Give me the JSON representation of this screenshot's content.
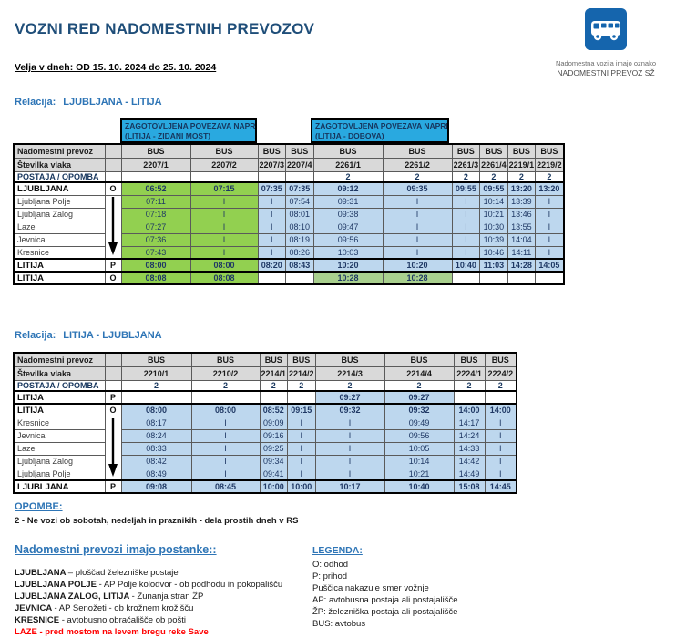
{
  "page": {
    "title": "VOZNI RED NADOMESTNIH PREVOZOV",
    "validity": "Velja v dneh: OD 15. 10. 2024 do 25. 10. 2024",
    "logo": {
      "caption_line1": "Nadomestna vozila imajo oznako",
      "caption_line2": "NADOMESTNI PREVOZ SŽ"
    }
  },
  "colors": {
    "accent_blue": "#1F4E79",
    "relation_blue": "#2E75B6",
    "banner_blue": "#29A9E0",
    "green": "#92D050",
    "light_green": "#A9D08E",
    "light_blue": "#BDD7EE",
    "header_gray": "#D9D9D9",
    "alert_red": "#FF0000"
  },
  "tables": [
    {
      "name": "timetable-ljubljana-litija",
      "relation_label": "Relacija:",
      "relation_value": "LJUBLJANA - LITIJA",
      "banners": [
        {
          "lines": [
            "ZAGOTOVLJENA POVEZAVA NAPREJ:",
            "(LITIJA - ZIDANI MOST)"
          ],
          "span": [
            0,
            1
          ]
        },
        {
          "lines": [
            "ZAGOTOVLJENA POVEZAVA NAPREJ:",
            "(LITIJA - DOBOVA)"
          ],
          "span": [
            4,
            5
          ]
        }
      ],
      "header_row_label": "Nadomestni prevoz",
      "bus_label": "BUS",
      "train_row_label": "Številka vlaka",
      "train_numbers": [
        "2207/1",
        "2207/2",
        "2207/3",
        "2207/4",
        "2261/1",
        "2261/2",
        "2261/3",
        "2261/4",
        "2219/1",
        "2219/2"
      ],
      "note_row_label": "POSTAJA / OPOMBA",
      "notes": [
        "",
        "",
        "",
        "",
        "2",
        "2",
        "2",
        "2",
        "2",
        "2"
      ],
      "arrow_rowspan": 5,
      "rows": [
        {
          "station": "LJUBLJANA",
          "mark": "O",
          "major": true,
          "thick": true,
          "cells": [
            {
              "t": "06:52",
              "bg": "green"
            },
            {
              "t": "07:15",
              "bg": "green"
            },
            {
              "t": "07:35",
              "bg": "blue"
            },
            {
              "t": "07:35",
              "bg": "blue"
            },
            {
              "t": "09:12",
              "bg": "blue"
            },
            {
              "t": "09:35",
              "bg": "blue"
            },
            {
              "t": "09:55",
              "bg": "blue"
            },
            {
              "t": "09:55",
              "bg": "blue"
            },
            {
              "t": "13:20",
              "bg": "blue"
            },
            {
              "t": "13:20",
              "bg": "blue"
            }
          ]
        },
        {
          "station": "Ljubljana Polje",
          "mark": "arrow",
          "major": false,
          "thick": false,
          "cells": [
            {
              "t": "07:11",
              "bg": "green"
            },
            {
              "t": "I",
              "bg": "green"
            },
            {
              "t": "I",
              "bg": "blue"
            },
            {
              "t": "07:54",
              "bg": "blue"
            },
            {
              "t": "09:31",
              "bg": "blue"
            },
            {
              "t": "I",
              "bg": "blue"
            },
            {
              "t": "I",
              "bg": "blue"
            },
            {
              "t": "10:14",
              "bg": "blue"
            },
            {
              "t": "13:39",
              "bg": "blue"
            },
            {
              "t": "I",
              "bg": "blue"
            }
          ]
        },
        {
          "station": "Ljubljana Zalog",
          "mark": "skip",
          "major": false,
          "thick": false,
          "cells": [
            {
              "t": "07:18",
              "bg": "green"
            },
            {
              "t": "I",
              "bg": "green"
            },
            {
              "t": "I",
              "bg": "blue"
            },
            {
              "t": "08:01",
              "bg": "blue"
            },
            {
              "t": "09:38",
              "bg": "blue"
            },
            {
              "t": "I",
              "bg": "blue"
            },
            {
              "t": "I",
              "bg": "blue"
            },
            {
              "t": "10:21",
              "bg": "blue"
            },
            {
              "t": "13:46",
              "bg": "blue"
            },
            {
              "t": "I",
              "bg": "blue"
            }
          ]
        },
        {
          "station": "Laze",
          "mark": "skip",
          "major": false,
          "thick": false,
          "cells": [
            {
              "t": "07:27",
              "bg": "green"
            },
            {
              "t": "I",
              "bg": "green"
            },
            {
              "t": "I",
              "bg": "blue"
            },
            {
              "t": "08:10",
              "bg": "blue"
            },
            {
              "t": "09:47",
              "bg": "blue"
            },
            {
              "t": "I",
              "bg": "blue"
            },
            {
              "t": "I",
              "bg": "blue"
            },
            {
              "t": "10:30",
              "bg": "blue"
            },
            {
              "t": "13:55",
              "bg": "blue"
            },
            {
              "t": "I",
              "bg": "blue"
            }
          ]
        },
        {
          "station": "Jevnica",
          "mark": "skip",
          "major": false,
          "thick": false,
          "cells": [
            {
              "t": "07:36",
              "bg": "green"
            },
            {
              "t": "I",
              "bg": "green"
            },
            {
              "t": "I",
              "bg": "blue"
            },
            {
              "t": "08:19",
              "bg": "blue"
            },
            {
              "t": "09:56",
              "bg": "blue"
            },
            {
              "t": "I",
              "bg": "blue"
            },
            {
              "t": "I",
              "bg": "blue"
            },
            {
              "t": "10:39",
              "bg": "blue"
            },
            {
              "t": "14:04",
              "bg": "blue"
            },
            {
              "t": "I",
              "bg": "blue"
            }
          ]
        },
        {
          "station": "Kresnice",
          "mark": "skip",
          "major": false,
          "thick": false,
          "cells": [
            {
              "t": "07:43",
              "bg": "green"
            },
            {
              "t": "I",
              "bg": "green"
            },
            {
              "t": "I",
              "bg": "blue"
            },
            {
              "t": "08:26",
              "bg": "blue"
            },
            {
              "t": "10:03",
              "bg": "blue"
            },
            {
              "t": "I",
              "bg": "blue"
            },
            {
              "t": "I",
              "bg": "blue"
            },
            {
              "t": "10:46",
              "bg": "blue"
            },
            {
              "t": "14:11",
              "bg": "blue"
            },
            {
              "t": "I",
              "bg": "blue"
            }
          ]
        },
        {
          "station": "LITIJA",
          "mark": "P",
          "major": true,
          "thick": true,
          "cells": [
            {
              "t": "08:00",
              "bg": "green"
            },
            {
              "t": "08:00",
              "bg": "green"
            },
            {
              "t": "08:20",
              "bg": "blue"
            },
            {
              "t": "08:43",
              "bg": "blue"
            },
            {
              "t": "10:20",
              "bg": "blue"
            },
            {
              "t": "10:20",
              "bg": "blue"
            },
            {
              "t": "10:40",
              "bg": "blue"
            },
            {
              "t": "11:03",
              "bg": "blue"
            },
            {
              "t": "14:28",
              "bg": "blue"
            },
            {
              "t": "14:05",
              "bg": "blue"
            }
          ]
        },
        {
          "station": "LITIJA",
          "mark": "O",
          "major": true,
          "thick": true,
          "cells": [
            {
              "t": "08:08",
              "bg": "green"
            },
            {
              "t": "08:08",
              "bg": "green"
            },
            {
              "t": "",
              "bg": ""
            },
            {
              "t": "",
              "bg": ""
            },
            {
              "t": "10:28",
              "bg": "lgreen"
            },
            {
              "t": "10:28",
              "bg": "lgreen"
            },
            {
              "t": "",
              "bg": ""
            },
            {
              "t": "",
              "bg": ""
            },
            {
              "t": "",
              "bg": ""
            },
            {
              "t": "",
              "bg": ""
            }
          ]
        }
      ]
    },
    {
      "name": "timetable-litija-ljubljana",
      "relation_label": "Relacija:",
      "relation_value": "LITIJA - LJUBLJANA",
      "banners": [],
      "header_row_label": "Nadomestni prevoz",
      "bus_label": "BUS",
      "train_row_label": "Številka vlaka",
      "train_numbers": [
        "2210/1",
        "2210/2",
        "2214/1",
        "2214/2",
        "2214/3",
        "2214/4",
        "2224/1",
        "2224/2"
      ],
      "note_row_label": "POSTAJA / OPOMBA",
      "notes": [
        "2",
        "2",
        "2",
        "2",
        "2",
        "2",
        "2",
        "2"
      ],
      "arrow_rowspan": 5,
      "rows": [
        {
          "station": "LITIJA",
          "mark": "P",
          "major": true,
          "thick": true,
          "cells": [
            {
              "t": "",
              "bg": ""
            },
            {
              "t": "",
              "bg": ""
            },
            {
              "t": "",
              "bg": ""
            },
            {
              "t": "",
              "bg": ""
            },
            {
              "t": "09:27",
              "bg": "blue"
            },
            {
              "t": "09:27",
              "bg": "blue"
            },
            {
              "t": "",
              "bg": ""
            },
            {
              "t": "",
              "bg": ""
            }
          ]
        },
        {
          "station": "LITIJA",
          "mark": "O",
          "major": true,
          "thick": true,
          "cells": [
            {
              "t": "08:00",
              "bg": "blue"
            },
            {
              "t": "08:00",
              "bg": "blue"
            },
            {
              "t": "08:52",
              "bg": "blue"
            },
            {
              "t": "09:15",
              "bg": "blue"
            },
            {
              "t": "09:32",
              "bg": "blue"
            },
            {
              "t": "09:32",
              "bg": "blue"
            },
            {
              "t": "14:00",
              "bg": "blue"
            },
            {
              "t": "14:00",
              "bg": "blue"
            }
          ]
        },
        {
          "station": "Kresnice",
          "mark": "arrow",
          "major": false,
          "thick": false,
          "cells": [
            {
              "t": "08:17",
              "bg": "blue"
            },
            {
              "t": "I",
              "bg": "blue"
            },
            {
              "t": "09:09",
              "bg": "blue"
            },
            {
              "t": "I",
              "bg": "blue"
            },
            {
              "t": "I",
              "bg": "blue"
            },
            {
              "t": "09:49",
              "bg": "blue"
            },
            {
              "t": "14:17",
              "bg": "blue"
            },
            {
              "t": "I",
              "bg": "blue"
            }
          ]
        },
        {
          "station": "Jevnica",
          "mark": "skip",
          "major": false,
          "thick": false,
          "cells": [
            {
              "t": "08:24",
              "bg": "blue"
            },
            {
              "t": "I",
              "bg": "blue"
            },
            {
              "t": "09:16",
              "bg": "blue"
            },
            {
              "t": "I",
              "bg": "blue"
            },
            {
              "t": "I",
              "bg": "blue"
            },
            {
              "t": "09:56",
              "bg": "blue"
            },
            {
              "t": "14:24",
              "bg": "blue"
            },
            {
              "t": "I",
              "bg": "blue"
            }
          ]
        },
        {
          "station": "Laze",
          "mark": "skip",
          "major": false,
          "thick": false,
          "cells": [
            {
              "t": "08:33",
              "bg": "blue"
            },
            {
              "t": "I",
              "bg": "blue"
            },
            {
              "t": "09:25",
              "bg": "blue"
            },
            {
              "t": "I",
              "bg": "blue"
            },
            {
              "t": "I",
              "bg": "blue"
            },
            {
              "t": "10:05",
              "bg": "blue"
            },
            {
              "t": "14:33",
              "bg": "blue"
            },
            {
              "t": "I",
              "bg": "blue"
            }
          ]
        },
        {
          "station": "Ljubljana Zalog",
          "mark": "skip",
          "major": false,
          "thick": false,
          "cells": [
            {
              "t": "08:42",
              "bg": "blue"
            },
            {
              "t": "I",
              "bg": "blue"
            },
            {
              "t": "09:34",
              "bg": "blue"
            },
            {
              "t": "I",
              "bg": "blue"
            },
            {
              "t": "I",
              "bg": "blue"
            },
            {
              "t": "10:14",
              "bg": "blue"
            },
            {
              "t": "14:42",
              "bg": "blue"
            },
            {
              "t": "I",
              "bg": "blue"
            }
          ]
        },
        {
          "station": "Ljubljana Polje",
          "mark": "skip",
          "major": false,
          "thick": false,
          "cells": [
            {
              "t": "08:49",
              "bg": "blue"
            },
            {
              "t": "I",
              "bg": "blue"
            },
            {
              "t": "09:41",
              "bg": "blue"
            },
            {
              "t": "I",
              "bg": "blue"
            },
            {
              "t": "I",
              "bg": "blue"
            },
            {
              "t": "10:21",
              "bg": "blue"
            },
            {
              "t": "14:49",
              "bg": "blue"
            },
            {
              "t": "I",
              "bg": "blue"
            }
          ]
        },
        {
          "station": "LJUBLJANA",
          "mark": "P",
          "major": true,
          "thick": true,
          "cells": [
            {
              "t": "09:08",
              "bg": "blue"
            },
            {
              "t": "08:45",
              "bg": "blue"
            },
            {
              "t": "10:00",
              "bg": "blue"
            },
            {
              "t": "10:00",
              "bg": "blue"
            },
            {
              "t": "10:17",
              "bg": "blue"
            },
            {
              "t": "10:40",
              "bg": "blue"
            },
            {
              "t": "15:08",
              "bg": "blue"
            },
            {
              "t": "14:45",
              "bg": "blue"
            }
          ]
        }
      ]
    }
  ],
  "opombe": {
    "title": "OPOMBE:",
    "note": "2 - Ne vozi ob sobotah, nedeljah in praznikih - dela prostih dneh v RS"
  },
  "stops": {
    "title": "Nadomestni prevozi imajo postanke::",
    "items": [
      {
        "name": "LJUBLJANA",
        "desc": "– ploščad železniške postaje",
        "red": false
      },
      {
        "name": "LJUBLJANA POLJE",
        "desc": "- AP Polje kolodvor - ob podhodu in pokopališču",
        "red": false
      },
      {
        "name": "LJUBLJANA ZALOG, LITIJA",
        "desc": "- Zunanja stran ŽP",
        "red": false
      },
      {
        "name": "JEVNICA",
        "desc": "- AP Senožeti - ob krožnem krožišču",
        "red": false
      },
      {
        "name": "KRESNICE",
        "desc": "- avtobusno obračališče ob pošti",
        "red": false
      },
      {
        "name": "LAZE",
        "desc": "- pred mostom na levem bregu reke Save",
        "red": true
      }
    ]
  },
  "legend": {
    "title": "LEGENDA:",
    "items": [
      "O: odhod",
      "P: prihod",
      "Puščica nakazuje smer vožnje",
      "AP: avtobusna postaja ali postajališče",
      "ŽP: železniška postaja ali postajališče",
      "BUS: avtobus"
    ]
  }
}
